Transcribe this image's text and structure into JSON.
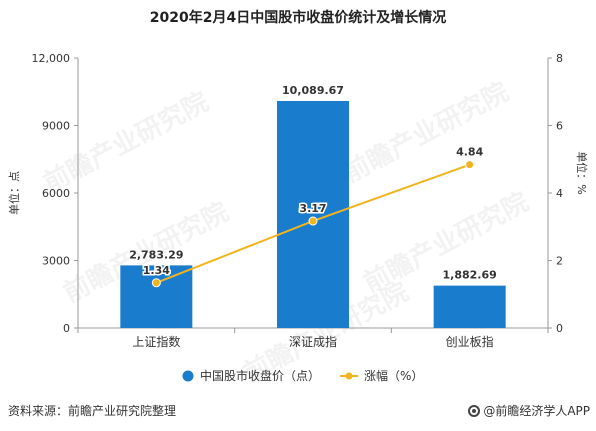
{
  "title": "2020年2月4日中国股市收盘价统计及增长情况",
  "footer": {
    "source": "资料来源：前瞻产业研究院整理",
    "brand": "@前瞻经济学人APP"
  },
  "watermark": {
    "text": "前瞻产业研究院"
  },
  "colors": {
    "bar": "#1a7ccc",
    "line": "#f0b41e",
    "axis": "#999999",
    "text": "#333333"
  },
  "chart_data": {
    "type": "bar",
    "categories": [
      "上证指数",
      "深证成指",
      "创业板指"
    ],
    "series": [
      {
        "name": "中国股市收盘价（点）",
        "type": "bar",
        "axis": "left",
        "values": [
          2783.29,
          10089.67,
          1882.69
        ],
        "labels": [
          "2,783.29",
          "10,089.67",
          "1,882.69"
        ]
      },
      {
        "name": "涨幅（%）",
        "type": "line",
        "axis": "right",
        "values": [
          1.34,
          3.17,
          4.84
        ],
        "labels": [
          "1.34",
          "3.17",
          "4.84"
        ]
      }
    ],
    "y_left": {
      "label": "单位：点",
      "ylim": [
        0,
        12000
      ],
      "ticks": [
        0,
        3000,
        6000,
        9000,
        12000
      ],
      "tick_labels": [
        "0",
        "3000",
        "6000",
        "9000",
        "12,000"
      ]
    },
    "y_right": {
      "label": "单位：%",
      "ylim": [
        0,
        8
      ],
      "ticks": [
        0,
        2,
        4,
        6,
        8
      ],
      "tick_labels": [
        "0",
        "2",
        "4",
        "6",
        "8"
      ]
    },
    "legend": "bottom-center",
    "grid": false
  }
}
